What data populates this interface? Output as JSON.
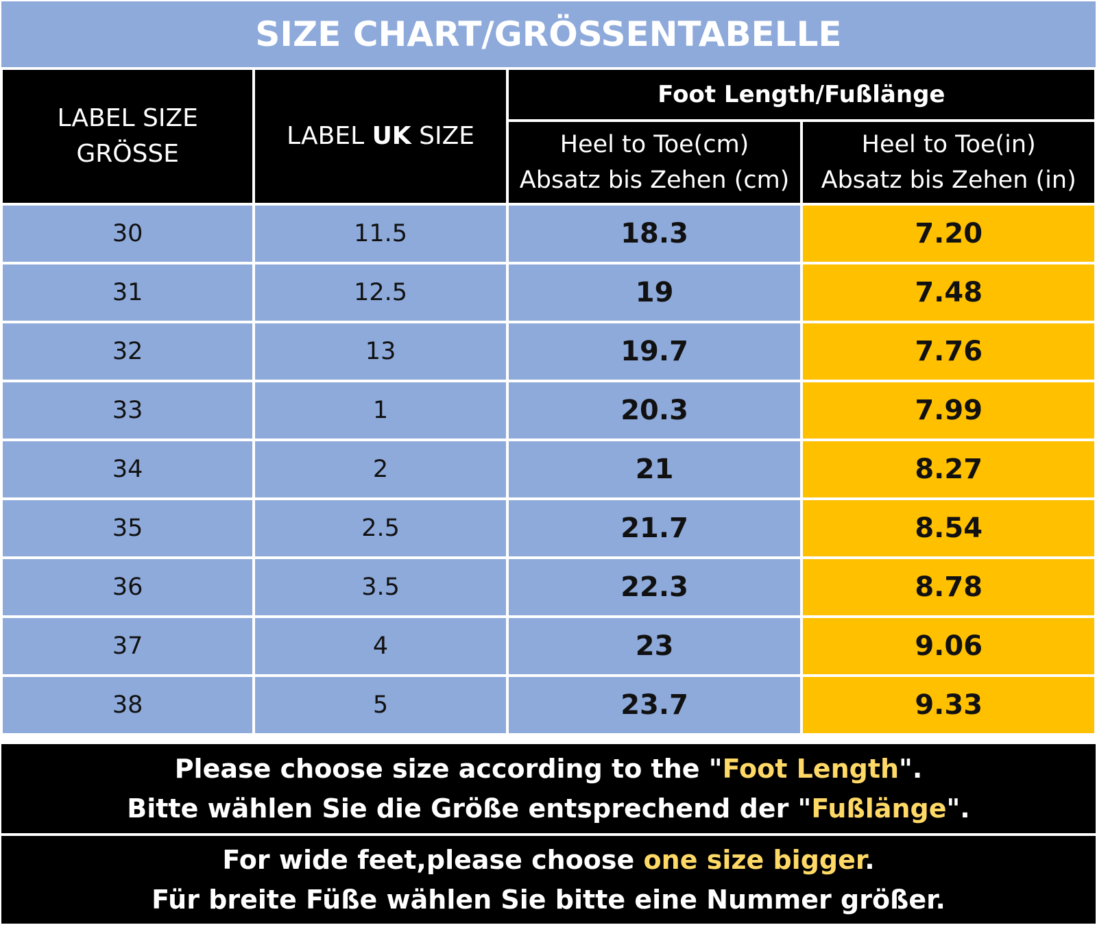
{
  "title": "SIZE CHART/GRÖSSENTABELLE",
  "headers": {
    "label_size_line1": "LABEL SIZE",
    "label_size_line2": "GRÖSSE",
    "uk_prefix": "LABEL ",
    "uk_bold": "UK",
    "uk_suffix": " SIZE",
    "foot_length": "Foot Length/Fußlänge",
    "cm_line1": "Heel to Toe(cm)",
    "cm_line2": "Absatz bis Zehen (cm)",
    "in_line1": "Heel to Toe(in)",
    "in_line2": "Absatz bis Zehen (in)"
  },
  "rows": [
    {
      "label": "30",
      "uk": "11.5",
      "cm": "18.3",
      "inch": "7.20"
    },
    {
      "label": "31",
      "uk": "12.5",
      "cm": "19",
      "inch": "7.48"
    },
    {
      "label": "32",
      "uk": "13",
      "cm": "19.7",
      "inch": "7.76"
    },
    {
      "label": "33",
      "uk": "1",
      "cm": "20.3",
      "inch": "7.99"
    },
    {
      "label": "34",
      "uk": "2",
      "cm": "21",
      "inch": "8.27"
    },
    {
      "label": "35",
      "uk": "2.5",
      "cm": "21.7",
      "inch": "8.54"
    },
    {
      "label": "36",
      "uk": "3.5",
      "cm": "22.3",
      "inch": "8.78"
    },
    {
      "label": "37",
      "uk": "4",
      "cm": "23",
      "inch": "9.06"
    },
    {
      "label": "38",
      "uk": "5",
      "cm": "23.7",
      "inch": "9.33"
    }
  ],
  "notes": {
    "n1_en_pre": "Please choose size according to the \"",
    "n1_en_hl": "Foot Length",
    "n1_en_post": "\".",
    "n1_de_pre": "Bitte wählen Sie die Größe entsprechend der \"",
    "n1_de_hl": "Fußlänge",
    "n1_de_post": "\".",
    "n2_en_pre": "For wide feet,please choose ",
    "n2_en_hl": "one size bigger",
    "n2_en_post": ".",
    "n2_de": "Für breite Füße wählen Sie bitte eine Nummer größer."
  },
  "colors": {
    "blue": "#8eaadb",
    "yellow": "#ffc000",
    "highlight_text": "#ffd966",
    "black": "#000000"
  }
}
